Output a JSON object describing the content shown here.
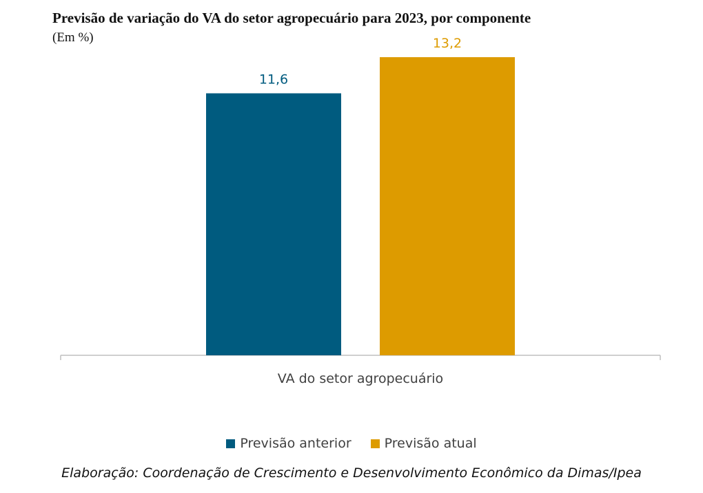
{
  "chart_data": {
    "type": "bar",
    "title": "Previsão de variação do VA do setor agropecuário para 2023, por componente",
    "subtitle": "(Em %)",
    "categories": [
      "VA do setor agropecuário"
    ],
    "series": [
      {
        "name": "Previsão anterior",
        "values": [
          11.6
        ],
        "label": "11,6",
        "color": "#005b7f"
      },
      {
        "name": "Previsão atual",
        "values": [
          13.2
        ],
        "label": "13,2",
        "color": "#dd9b00"
      }
    ],
    "ylim": [
      0,
      15
    ],
    "xlabel": "",
    "ylabel": "",
    "grid": false,
    "legend_position": "bottom"
  },
  "source_note": "Elaboração: Coordenação de Crescimento e Desenvolvimento Econômico da Dimas/Ipea",
  "axis_color": "#bfbfbf"
}
